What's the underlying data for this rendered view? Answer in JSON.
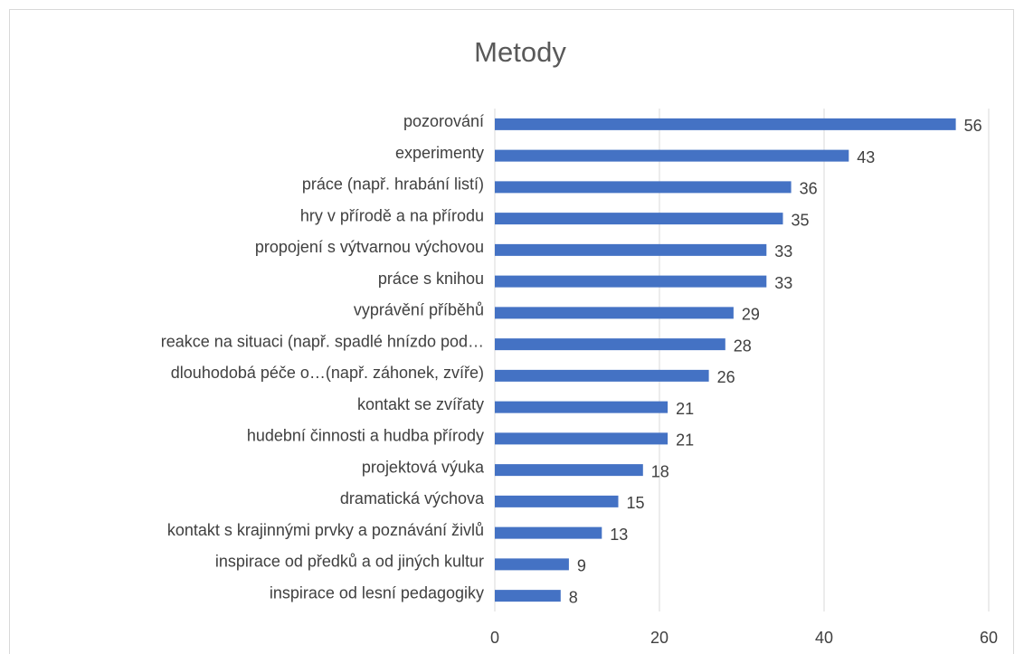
{
  "chart_data": {
    "type": "bar",
    "orientation": "horizontal",
    "title": "Metody",
    "categories": [
      "pozorování",
      "experimenty",
      "práce (např. hrabání listí)",
      "hry v přírodě a na přírodu",
      "propojení s výtvarnou výchovou",
      "práce s knihou",
      "vyprávění příběhů",
      "reakce na situaci (např. spadlé hnízdo pod…",
      "dlouhodobá péče o…(např. záhonek, zvíře)",
      "kontakt se zvířaty",
      "hudební činnosti a hudba přírody",
      "projektová výuka",
      "dramatická výchova",
      "kontakt s krajinnými prvky a poznávání živlů",
      "inspirace od předků a od jiných kultur",
      "inspirace od lesní pedagogiky"
    ],
    "values": [
      56,
      43,
      36,
      35,
      33,
      33,
      29,
      28,
      26,
      21,
      21,
      18,
      15,
      13,
      9,
      8
    ],
    "color": "#4472c4",
    "xlim": [
      0,
      60
    ],
    "xticks": [
      0,
      20,
      40,
      60
    ],
    "grid": true
  }
}
